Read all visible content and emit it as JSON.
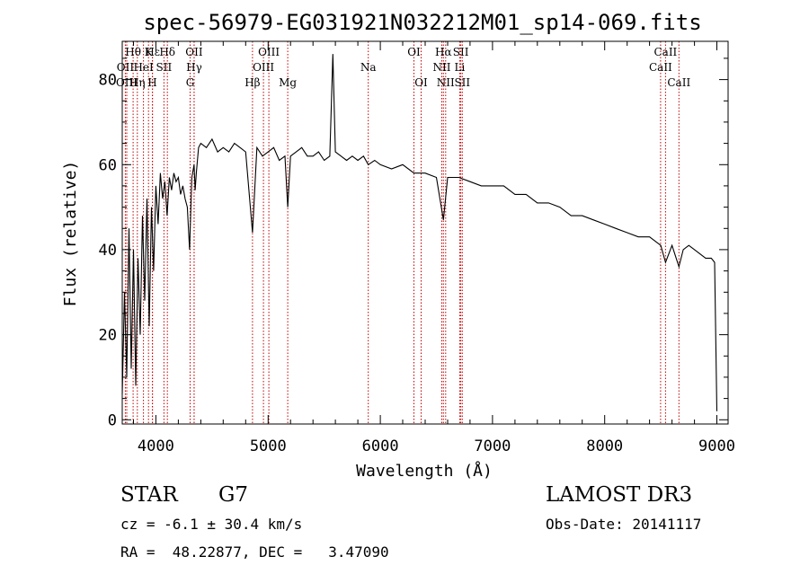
{
  "chart_data": {
    "type": "line",
    "title": "spec-56979-EG031921N032212M01_sp14-069.fits",
    "xlabel": "Wavelength (Å)",
    "ylabel": "Flux (relative)",
    "xlim": [
      3700,
      9100
    ],
    "ylim": [
      -1,
      89
    ],
    "x_ticks": [
      4000,
      5000,
      6000,
      7000,
      8000,
      9000
    ],
    "y_ticks": [
      0,
      20,
      40,
      60,
      80
    ],
    "grid": false,
    "series": [
      {
        "name": "spectrum",
        "x": [
          3700,
          3720,
          3740,
          3760,
          3780,
          3800,
          3820,
          3840,
          3860,
          3880,
          3900,
          3920,
          3940,
          3960,
          3980,
          4000,
          4020,
          4040,
          4060,
          4080,
          4100,
          4120,
          4140,
          4160,
          4180,
          4200,
          4220,
          4240,
          4260,
          4280,
          4300,
          4320,
          4340,
          4350,
          4360,
          4380,
          4400,
          4450,
          4500,
          4550,
          4600,
          4650,
          4700,
          4750,
          4800,
          4861,
          4900,
          4950,
          5000,
          5050,
          5100,
          5150,
          5175,
          5200,
          5250,
          5300,
          5350,
          5400,
          5450,
          5500,
          5550,
          5577,
          5600,
          5650,
          5700,
          5750,
          5800,
          5850,
          5893,
          5950,
          6000,
          6100,
          6200,
          6300,
          6400,
          6500,
          6563,
          6600,
          6700,
          6800,
          6900,
          7000,
          7100,
          7200,
          7300,
          7400,
          7500,
          7600,
          7700,
          7800,
          7900,
          8000,
          8100,
          8200,
          8300,
          8400,
          8500,
          8542,
          8600,
          8662,
          8700,
          8750,
          8800,
          8850,
          8900,
          8950,
          8980,
          9000
        ],
        "values": [
          6,
          30,
          10,
          45,
          12,
          40,
          8,
          38,
          20,
          48,
          28,
          52,
          22,
          50,
          35,
          55,
          46,
          58,
          52,
          56,
          48,
          57,
          54,
          58,
          56,
          57,
          53,
          55,
          52,
          50,
          40,
          57,
          60,
          54,
          58,
          64,
          65,
          64,
          66,
          63,
          64,
          63,
          65,
          64,
          63,
          44,
          64,
          62,
          63,
          64,
          61,
          62,
          50,
          62,
          63,
          64,
          62,
          62,
          63,
          61,
          62,
          86,
          63,
          62,
          61,
          62,
          61,
          62,
          60,
          61,
          60,
          59,
          60,
          58,
          58,
          57,
          47,
          57,
          57,
          56,
          55,
          55,
          55,
          53,
          53,
          51,
          51,
          50,
          48,
          48,
          47,
          46,
          45,
          44,
          43,
          43,
          41,
          37,
          41,
          36,
          40,
          41,
          40,
          39,
          38,
          38,
          37,
          2
        ]
      }
    ],
    "line_labels": [
      {
        "name": "Hθ",
        "wave": 3797,
        "row": 1
      },
      {
        "name": "OII",
        "wave": 3727,
        "row": 2
      },
      {
        "name": "Hε",
        "wave": 3970,
        "row": 1
      },
      {
        "name": "K",
        "wave": 3934,
        "row": 1
      },
      {
        "name": "Hδ",
        "wave": 4102,
        "row": 1
      },
      {
        "name": "OII",
        "wave": 4340,
        "row": 1
      },
      {
        "name": "OIII",
        "wave": 5007,
        "row": 1
      },
      {
        "name": "OI",
        "wave": 6300,
        "row": 1
      },
      {
        "name": "Hα",
        "wave": 6563,
        "row": 1
      },
      {
        "name": "SII",
        "wave": 6717,
        "row": 1
      },
      {
        "name": "CaII",
        "wave": 8542,
        "row": 1
      },
      {
        "name": "HeI",
        "wave": 3889,
        "row": 2
      },
      {
        "name": "SII",
        "wave": 4072,
        "row": 2
      },
      {
        "name": "Hγ",
        "wave": 4341,
        "row": 2
      },
      {
        "name": "OIII",
        "wave": 4959,
        "row": 2
      },
      {
        "name": "Na",
        "wave": 5893,
        "row": 2
      },
      {
        "name": "NII",
        "wave": 6548,
        "row": 2
      },
      {
        "name": "Li",
        "wave": 6708,
        "row": 2
      },
      {
        "name": "CaII",
        "wave": 8498,
        "row": 2
      },
      {
        "name": "OIII",
        "wave": 3740,
        "row": 3
      },
      {
        "name": "Hη",
        "wave": 3835,
        "row": 3
      },
      {
        "name": "H",
        "wave": 3968,
        "row": 3
      },
      {
        "name": "G",
        "wave": 4305,
        "row": 3
      },
      {
        "name": "Hβ",
        "wave": 4861,
        "row": 3
      },
      {
        "name": "Mg",
        "wave": 5175,
        "row": 3
      },
      {
        "name": "OI",
        "wave": 6364,
        "row": 3
      },
      {
        "name": "NII",
        "wave": 6583,
        "row": 3
      },
      {
        "name": "SII",
        "wave": 6731,
        "row": 3
      },
      {
        "name": "CaII",
        "wave": 8662,
        "row": 3
      }
    ],
    "line_markers": [
      3727,
      3740,
      3797,
      3835,
      3889,
      3934,
      3968,
      3970,
      4072,
      4102,
      4305,
      4340,
      4341,
      4861,
      4959,
      5007,
      5175,
      5893,
      6300,
      6364,
      6548,
      6563,
      6583,
      6708,
      6717,
      6731,
      8498,
      8542,
      8662
    ]
  },
  "info": {
    "object_class": "STAR",
    "subclass": "G7",
    "survey": "LAMOST DR3",
    "redshift": "cz = -6.1 ± 30.4 km/s",
    "obs_date": "Obs-Date: 20141117",
    "coords": "RA =  48.22877, DEC =   3.47090"
  },
  "colors": {
    "line": "#000000",
    "marker": "#c00000",
    "axis": "#000000"
  }
}
